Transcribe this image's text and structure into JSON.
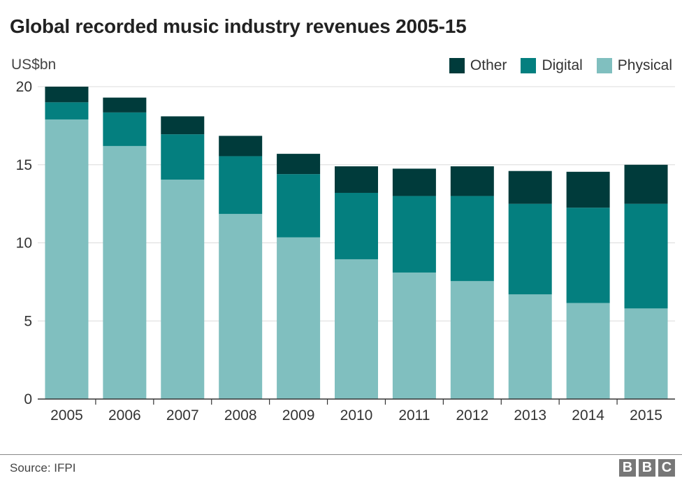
{
  "title": "Global recorded music industry revenues 2005-15",
  "source": "Source: IFPI",
  "logo": [
    "B",
    "B",
    "C"
  ],
  "colors": {
    "Other": "#003b3b",
    "Digital": "#047f7f",
    "Physical": "#80bfbf"
  },
  "chart_data": {
    "type": "bar",
    "stacked": true,
    "title": "Global recorded music industry revenues 2005-15",
    "xlabel": "",
    "ylabel": "US$bn",
    "ylim": [
      0,
      20
    ],
    "yticks": [
      0,
      5,
      10,
      15,
      20
    ],
    "grid": true,
    "legend_position": "top-right",
    "categories": [
      "2005",
      "2006",
      "2007",
      "2008",
      "2009",
      "2010",
      "2011",
      "2012",
      "2013",
      "2014",
      "2015"
    ],
    "series": [
      {
        "name": "Physical",
        "values": [
          17.9,
          16.2,
          14.05,
          11.85,
          10.35,
          8.95,
          8.1,
          7.55,
          6.7,
          6.15,
          5.8
        ]
      },
      {
        "name": "Digital",
        "values": [
          1.1,
          2.15,
          2.9,
          3.7,
          4.05,
          4.25,
          4.9,
          5.45,
          5.8,
          6.1,
          6.7
        ]
      },
      {
        "name": "Other",
        "values": [
          1.0,
          0.95,
          1.15,
          1.3,
          1.3,
          1.7,
          1.75,
          1.9,
          2.1,
          2.3,
          2.5
        ]
      }
    ]
  }
}
